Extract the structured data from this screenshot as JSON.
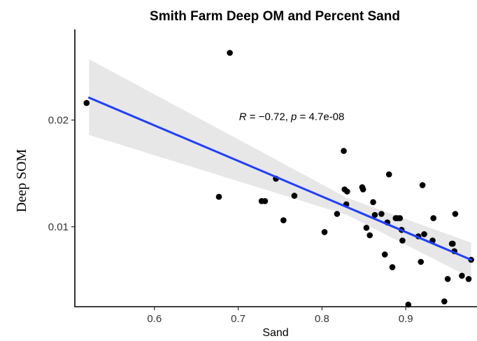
{
  "chart_data": {
    "type": "scatter",
    "title": "Smith Farm Deep OM and Percent Sand",
    "xlabel": "Sand",
    "ylabel": "Deep SOM",
    "xlim": [
      0.505,
      0.985
    ],
    "ylim": [
      0.0025,
      0.0285
    ],
    "x_ticks": [
      0.6,
      0.7,
      0.8,
      0.9
    ],
    "x_tick_labels": [
      "0.6",
      "0.7",
      "0.8",
      "0.9"
    ],
    "y_ticks": [
      0.01,
      0.02
    ],
    "y_tick_labels": [
      "0.01",
      "0.02"
    ],
    "grid": false,
    "annotation": {
      "r_symbol": "R",
      "r_text": " = −0.72, ",
      "p_symbol": "p",
      "p_text": " = 4.7e-08",
      "x": 0.701,
      "y": 0.02
    },
    "regression": {
      "x": [
        0.522,
        0.978
      ],
      "y": [
        0.0221,
        0.0069
      ],
      "ci_upper": [
        0.0257,
        0.0085
      ],
      "ci_lower": [
        0.0186,
        0.0052
      ],
      "ci_mid_x": 0.83,
      "ci_mid_upper": 0.0127,
      "ci_mid_lower": 0.0111,
      "line_color": "#1f3fff",
      "band_color": "#d4d4d4"
    },
    "points": {
      "color": "#000000",
      "x": [
        0.519,
        0.69,
        0.677,
        0.728,
        0.732,
        0.745,
        0.754,
        0.767,
        0.803,
        0.818,
        0.826,
        0.827,
        0.829,
        0.83,
        0.848,
        0.849,
        0.853,
        0.857,
        0.861,
        0.863,
        0.871,
        0.875,
        0.878,
        0.88,
        0.884,
        0.888,
        0.89,
        0.893,
        0.895,
        0.896,
        0.903,
        0.915,
        0.918,
        0.92,
        0.922,
        0.932,
        0.933,
        0.946,
        0.95,
        0.955,
        0.956,
        0.958,
        0.959,
        0.967,
        0.975,
        0.978
      ],
      "y": [
        0.0216,
        0.0263,
        0.0128,
        0.0124,
        0.0124,
        0.0145,
        0.0106,
        0.0129,
        0.0095,
        0.0112,
        0.0171,
        0.0135,
        0.0121,
        0.0133,
        0.0137,
        0.0135,
        0.0099,
        0.0092,
        0.0123,
        0.0111,
        0.0112,
        0.0074,
        0.0104,
        0.0149,
        0.0062,
        0.0108,
        0.0108,
        0.0108,
        0.0097,
        0.0087,
        0.0027,
        0.0091,
        0.0067,
        0.0139,
        0.0093,
        0.0087,
        0.0108,
        0.003,
        0.0051,
        0.0084,
        0.0084,
        0.0077,
        0.0112,
        0.0054,
        0.0051,
        0.0069
      ]
    }
  }
}
